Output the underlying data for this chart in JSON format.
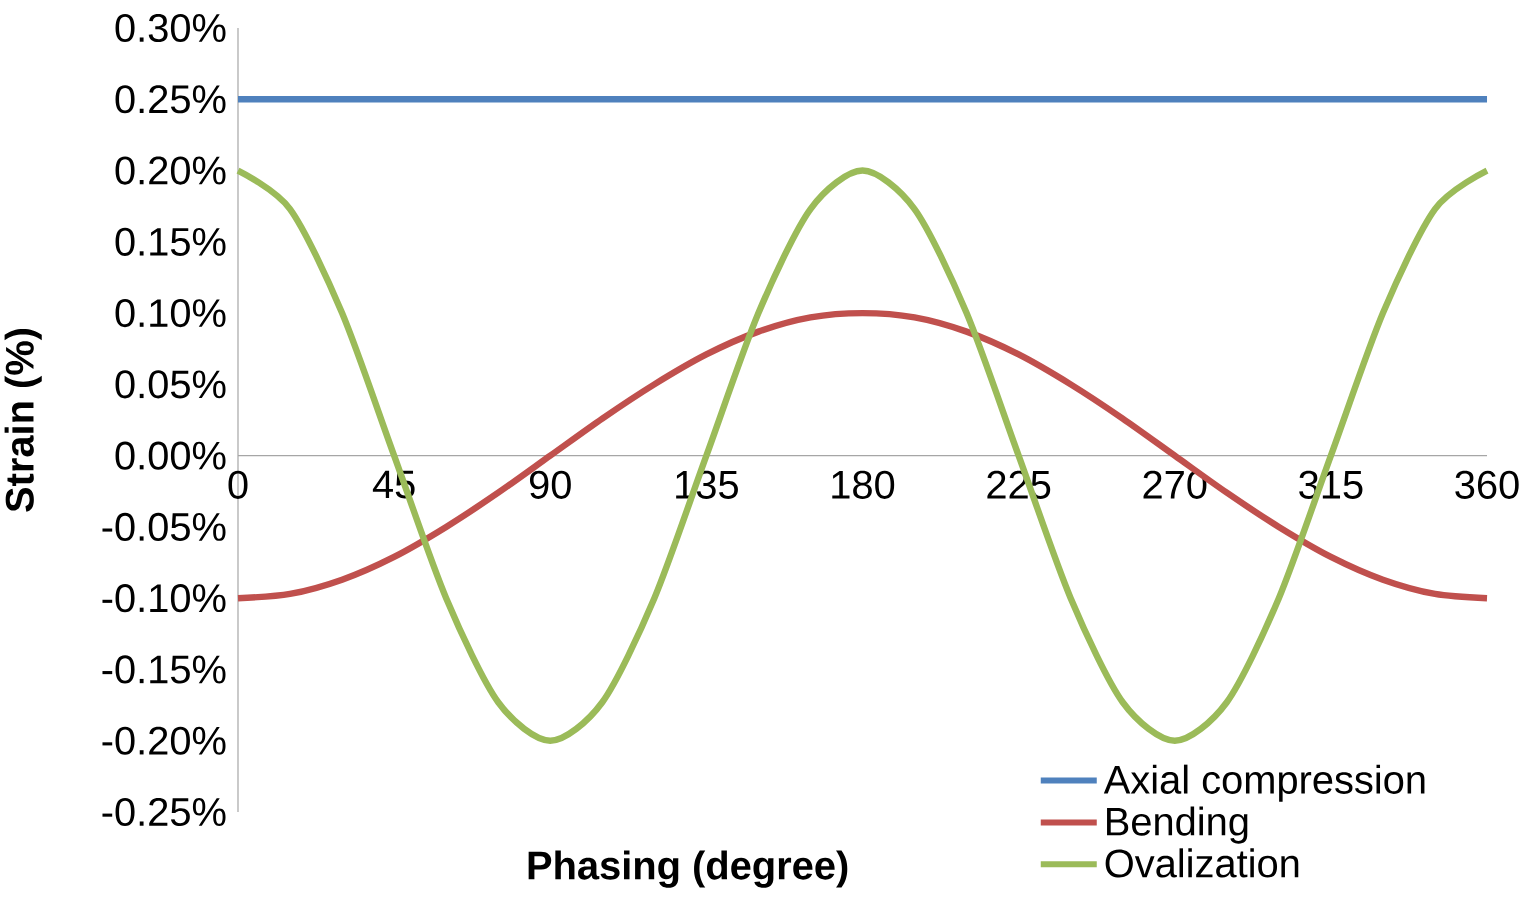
{
  "chart_data": {
    "type": "line",
    "xlabel": "Phasing (degree)",
    "ylabel": "Strain (%)",
    "x": [
      0,
      15,
      30,
      45,
      60,
      75,
      90,
      105,
      120,
      135,
      150,
      165,
      180,
      195,
      210,
      225,
      240,
      255,
      270,
      285,
      300,
      315,
      330,
      345,
      360
    ],
    "series": [
      {
        "name": "Axial compression",
        "color": "#4f81bd",
        "values": [
          0.25,
          0.25,
          0.25,
          0.25,
          0.25,
          0.25,
          0.25,
          0.25,
          0.25,
          0.25,
          0.25,
          0.25,
          0.25,
          0.25,
          0.25,
          0.25,
          0.25,
          0.25,
          0.25,
          0.25,
          0.25,
          0.25,
          0.25,
          0.25,
          0.25
        ]
      },
      {
        "name": "Bending",
        "color": "#c0504d",
        "values": [
          -0.1,
          -0.097,
          -0.087,
          -0.071,
          -0.05,
          -0.026,
          0,
          0.026,
          0.05,
          0.071,
          0.087,
          0.097,
          0.1,
          0.097,
          0.087,
          0.071,
          0.05,
          0.026,
          0,
          -0.026,
          -0.05,
          -0.071,
          -0.087,
          -0.097,
          -0.1
        ]
      },
      {
        "name": "Ovalization",
        "color": "#9bbb59",
        "values": [
          0.2,
          0.173,
          0.1,
          0,
          -0.1,
          -0.173,
          -0.2,
          -0.173,
          -0.1,
          0,
          0.1,
          0.173,
          0.2,
          0.173,
          0.1,
          0,
          -0.1,
          -0.173,
          -0.2,
          -0.173,
          -0.1,
          0,
          0.1,
          0.173,
          0.2
        ]
      }
    ],
    "xlim": [
      0,
      360
    ],
    "xticks": [
      0,
      45,
      90,
      135,
      180,
      225,
      270,
      315,
      360
    ],
    "ylim": [
      -0.25,
      0.3
    ],
    "yticks": [
      {
        "value": -0.25,
        "label": "-0.25%"
      },
      {
        "value": -0.2,
        "label": "-0.20%"
      },
      {
        "value": -0.15,
        "label": "-0.15%"
      },
      {
        "value": -0.1,
        "label": "-0.10%"
      },
      {
        "value": -0.05,
        "label": "-0.05%"
      },
      {
        "value": 0,
        "label": "0.00%"
      },
      {
        "value": 0.05,
        "label": "0.05%"
      },
      {
        "value": 0.1,
        "label": "0.10%"
      },
      {
        "value": 0.15,
        "label": "0.15%"
      },
      {
        "value": 0.2,
        "label": "0.20%"
      },
      {
        "value": 0.25,
        "label": "0.25%"
      },
      {
        "value": 0.3,
        "label": "0.30%"
      }
    ],
    "legend": "bottom right"
  }
}
